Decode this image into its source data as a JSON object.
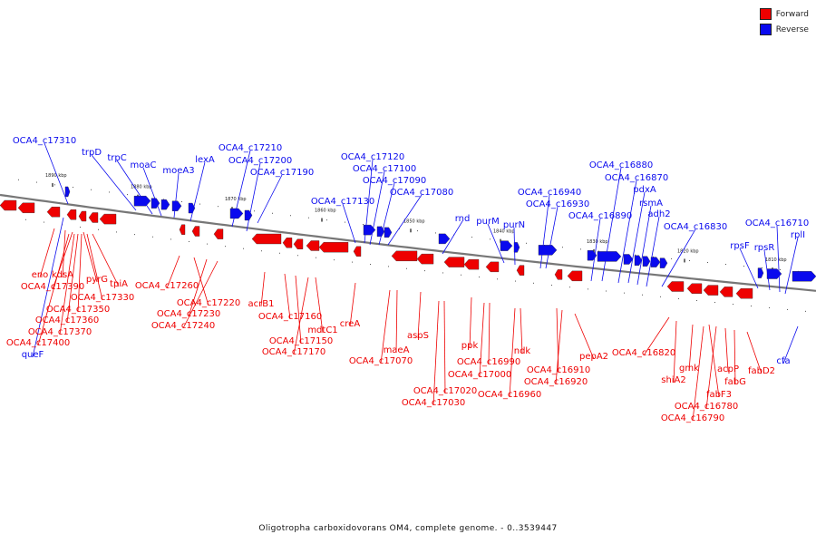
{
  "caption": "Oligotropha carboxidovorans OM4, complete genome. - 0..3539447",
  "legend": [
    {
      "label": "Forward",
      "color": "#ee0000"
    },
    {
      "label": "Reverse",
      "color": "#0a0aee"
    }
  ],
  "colors": {
    "forward": "#ee0000",
    "reverse": "#0a0aee",
    "backbone": "#888888"
  },
  "scale": [
    {
      "label": "1890 kbp",
      "value": 1890
    },
    {
      "label": "1880 kbp",
      "value": 1880
    },
    {
      "label": "1870 kbp",
      "value": 1870
    },
    {
      "label": "1860 kbp",
      "value": 1860
    },
    {
      "label": "1850 kbp",
      "value": 1850
    },
    {
      "label": "1840 kbp",
      "value": 1840
    },
    {
      "label": "1830 kbp",
      "value": 1830
    },
    {
      "label": "1820 kbp",
      "value": 1820
    },
    {
      "label": "1810 kbp",
      "value": 1810
    }
  ],
  "reverse_labels": [
    "OCA4_c17310",
    "trpD",
    "trpC",
    "moaC",
    "moeA3",
    "lexA",
    "OCA4_c17210",
    "OCA4_c17200",
    "OCA4_c17190",
    "OCA4_c17130",
    "OCA4_c17120",
    "OCA4_c17100",
    "OCA4_c17090",
    "OCA4_c17080",
    "rnd",
    "purM",
    "purN",
    "OCA4_c16940",
    "OCA4_c16930",
    "OCA4_c16890",
    "OCA4_c16880",
    "OCA4_c16870",
    "pdxA",
    "rsmA",
    "adh2",
    "OCA4_c16830",
    "rpsF",
    "rpsR",
    "OCA4_c16710",
    "rplI",
    "queF",
    "cfa"
  ],
  "forward_labels": [
    "eno",
    "kdsA",
    "OCA4_c17390",
    "pyrG",
    "tpiA",
    "OCA4_c17330",
    "OCA4_c17350",
    "OCA4_c17360",
    "OCA4_c17370",
    "OCA4_c17400",
    "OCA4_c17260",
    "OCA4_c17220",
    "OCA4_c17230",
    "OCA4_c17240",
    "acrB1",
    "OCA4_c17160",
    "OCA4_c17150",
    "mdtC1",
    "OCA4_c17170",
    "creA",
    "maeA",
    "aspS",
    "OCA4_c17070",
    "ppk",
    "OCA4_c16990",
    "OCA4_c17000",
    "OCA4_c17020",
    "OCA4_c17030",
    "ndk",
    "OCA4_c16960",
    "OCA4_c16910",
    "OCA4_c16920",
    "pepA2",
    "OCA4_c16820",
    "shiA2",
    "gmk",
    "fabF3",
    "OCA4_c16780",
    "OCA4_c16790",
    "acpP",
    "fabG",
    "fabD2"
  ]
}
